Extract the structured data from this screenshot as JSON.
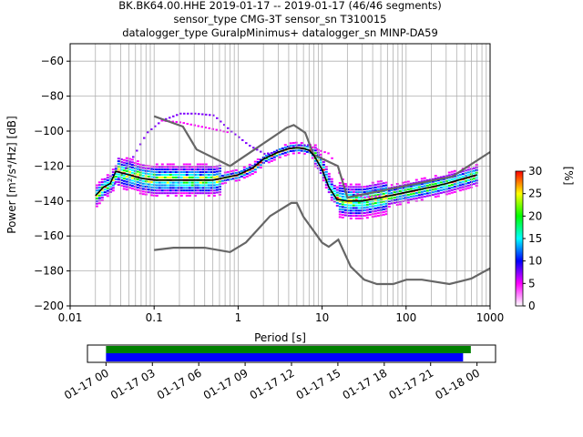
{
  "chart_data": [
    {
      "type": "heatmap",
      "title_lines": [
        "BK.BK64.00.HHE   2019-01-17 -- 2019-01-17  (46/46 segments)",
        "sensor_type CMG-3T sensor_sn T310015",
        "datalogger_type GuralpMinimus+ datalogger_sn MINP-DA59"
      ],
      "xlabel": "Period [s]",
      "ylabel": "Power [m²/s⁴/Hz] [dB]",
      "xscale": "log",
      "xlim": [
        0.01,
        1000
      ],
      "ylim": [
        -200,
        -50
      ],
      "xticks": [
        {
          "value": 0.01,
          "label": "0.01"
        },
        {
          "value": 0.1,
          "label": "0.1"
        },
        {
          "value": 1,
          "label": "1"
        },
        {
          "value": 10,
          "label": "10"
        },
        {
          "value": 100,
          "label": "100"
        },
        {
          "value": 1000,
          "label": "1000"
        }
      ],
      "yticks": [
        {
          "value": -60,
          "label": "−60"
        },
        {
          "value": -80,
          "label": "−80"
        },
        {
          "value": -100,
          "label": "−100"
        },
        {
          "value": -120,
          "label": "−120"
        },
        {
          "value": -140,
          "label": "−140"
        },
        {
          "value": -160,
          "label": "−160"
        },
        {
          "value": -180,
          "label": "−180"
        },
        {
          "value": -200,
          "label": "−200"
        }
      ],
      "grid": true,
      "period_gridlines": [
        0.02,
        0.03,
        0.04,
        0.05,
        0.06,
        0.07,
        0.08,
        0.09,
        0.2,
        0.3,
        0.4,
        0.5,
        0.6,
        0.7,
        0.8,
        0.9,
        2,
        3,
        4,
        5,
        6,
        7,
        8,
        9,
        20,
        30,
        40,
        50,
        60,
        70,
        80,
        90,
        200,
        300,
        400,
        500,
        600,
        700,
        800,
        900
      ],
      "nhnm": {
        "x": [
          0.1,
          0.22,
          0.32,
          0.8,
          3.8,
          4.6,
          6.3,
          7.9,
          15.4,
          20,
          354.8,
          1000
        ],
        "y": [
          -91.5,
          -97.4,
          -110.5,
          -120,
          -98,
          -96.5,
          -101,
          -113.5,
          -120,
          -138,
          -126,
          -112
        ]
      },
      "nlnm": {
        "x": [
          0.1,
          0.17,
          0.4,
          0.8,
          1.24,
          2.4,
          4.3,
          5,
          6,
          10,
          12,
          15.6,
          21.9,
          31.6,
          45,
          70,
          101,
          154,
          328,
          600,
          1000
        ],
        "y": [
          -168,
          -166.7,
          -166.7,
          -169.2,
          -163.7,
          -148.6,
          -141.1,
          -141.1,
          -149,
          -163.8,
          -166.2,
          -162.1,
          -177.5,
          -185,
          -187.5,
          -187.5,
          -185,
          -185,
          -187.5,
          -184.4,
          -178.5
        ]
      },
      "mean_curve": {
        "x": [
          0.02,
          0.025,
          0.03,
          0.035,
          0.05,
          0.07,
          0.1,
          0.2,
          0.5,
          1,
          1.5,
          2,
          3,
          4,
          5,
          6,
          7,
          8,
          10,
          12,
          15,
          20,
          30,
          50,
          100,
          200,
          300,
          500,
          700
        ],
        "y": [
          -137,
          -132,
          -130,
          -123,
          -125,
          -127,
          -128,
          -128,
          -128,
          -125,
          -121,
          -116,
          -112,
          -110,
          -109.5,
          -110,
          -111,
          -114,
          -122,
          -132,
          -139,
          -140,
          -140,
          -138,
          -135,
          -132,
          -130,
          -127,
          -125
        ]
      },
      "colorbar": {
        "label": "[%]",
        "min": 0,
        "max": 30,
        "ticks": [
          "0",
          "5",
          "10",
          "15",
          "20",
          "25",
          "30"
        ],
        "colors": [
          "#ffffff",
          "#ff00ff",
          "#0000ff",
          "#00ffff",
          "#00ff00",
          "#ffff00",
          "#ff0000"
        ]
      }
    },
    {
      "type": "timeline",
      "ticks": [
        "01-17 00",
        "01-17 03",
        "01-17 06",
        "01-17 09",
        "01-17 12",
        "01-17 15",
        "01-17 18",
        "01-17 21",
        "01-18 00"
      ],
      "tick_hours": [
        0,
        3,
        6,
        9,
        12,
        15,
        18,
        21,
        24
      ],
      "range_hours": [
        -1.2,
        25.2
      ],
      "green_bar_hours": [
        0,
        23.6
      ],
      "blue_bar_hours": [
        0,
        23.1
      ],
      "colors": {
        "green": "#008000",
        "blue": "#0000ff"
      }
    }
  ]
}
